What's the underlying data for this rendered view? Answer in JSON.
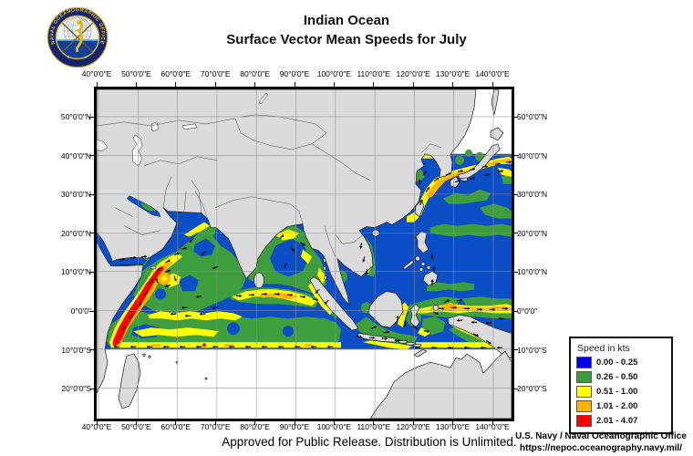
{
  "header": {
    "title_line1": "Indian Ocean",
    "title_line2": "Surface Vector Mean Speeds for July",
    "logo_ring_text": "NAVAL OCEANOGRAPHIC OFFICE"
  },
  "map": {
    "lon_labels": [
      "40°0'0\"E",
      "50°0'0\"E",
      "60°0'0\"E",
      "70°0'0\"E",
      "80°0'0\"E",
      "90°0'0\"E",
      "100°0'0\"E",
      "110°0'0\"E",
      "120°0'0\"E",
      "130°0'0\"E",
      "140°0'0\"E"
    ],
    "lat_labels": [
      "50°0'0\"N",
      "40°0'0\"N",
      "30°0'0\"N",
      "20°0'0\"N",
      "10°0'0\"N",
      "0°0'0\"",
      "10°0'0\"S",
      "20°0'0\"S"
    ]
  },
  "legend": {
    "title": "Speed in kts",
    "entries": [
      {
        "color": "#0000EE",
        "label": "0.00 - 0.25"
      },
      {
        "color": "#3E9B3E",
        "label": "0.26 - 0.50"
      },
      {
        "color": "#FFFF00",
        "label": "0.51 - 1.00"
      },
      {
        "color": "#FFB300",
        "label": "1.01 - 2.00"
      },
      {
        "color": "#FF0000",
        "label": "2.01 - 4.07"
      }
    ]
  },
  "footer": {
    "approved": "Approved for Public Release. Distribution is Unlimited.",
    "agency": "U.S. Navy / Naval Oceanographic Office",
    "url": "https://nepoc.oceanography.navy.mil/"
  },
  "colors": {
    "ocean": "#0B4EC6",
    "speed_green": "#3E9E3E",
    "speed_yellow": "#FFFF00",
    "speed_orange": "#FFB300",
    "speed_red": "#FF0000",
    "land": "#DBDBDB",
    "grid": "#8F8F8F"
  }
}
